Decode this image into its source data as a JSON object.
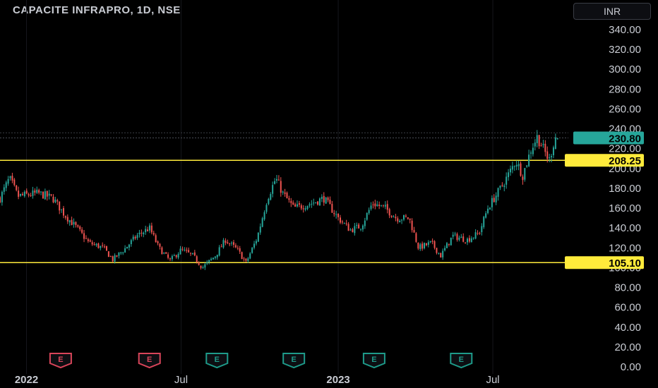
{
  "header": {
    "symbol_title": "CAPACITE INFRAPRO, 1D, NSE",
    "currency": "INR"
  },
  "colors": {
    "background": "#000000",
    "up": "#26a69a",
    "down": "#ef5350",
    "level_line": "#ffeb3b",
    "price_badge": "#26a69a",
    "earnings_down": "#d9455a",
    "earnings_up": "#1e9b8a"
  },
  "chart_data": {
    "type": "candlestick",
    "title": "CAPACITE INFRAPRO, 1D, NSE",
    "y_ticks": [
      "0.00",
      "20.00",
      "40.00",
      "60.00",
      "80.00",
      "100.00",
      "120.00",
      "140.00",
      "160.00",
      "180.00",
      "200.00",
      "220.00",
      "240.00",
      "260.00",
      "280.00",
      "300.00",
      "320.00",
      "340.00"
    ],
    "ylim": [
      0,
      355
    ],
    "x_ticks": [
      "2022",
      "Jul",
      "2023",
      "Jul"
    ],
    "x_range": [
      "2021-12-01",
      "2023-09-15"
    ],
    "last_price": "230.80",
    "horizontal_levels": [
      {
        "label": "208.25",
        "value": 208.25
      },
      {
        "label": "105.10",
        "value": 105.1
      }
    ],
    "earnings_markers": [
      {
        "date": "2022-02-10",
        "label": "E",
        "sentiment": "down"
      },
      {
        "date": "2022-05-25",
        "label": "E",
        "sentiment": "down"
      },
      {
        "date": "2022-08-12",
        "label": "E",
        "sentiment": "up"
      },
      {
        "date": "2022-11-10",
        "label": "E",
        "sentiment": "up"
      },
      {
        "date": "2023-02-12",
        "label": "E",
        "sentiment": "up"
      },
      {
        "date": "2023-05-25",
        "label": "E",
        "sentiment": "up"
      }
    ],
    "price_path": [
      [
        "2021-12-01",
        170
      ],
      [
        "2021-12-12",
        190
      ],
      [
        "2021-12-22",
        172
      ],
      [
        "2022-01-15",
        175
      ],
      [
        "2022-02-01",
        170
      ],
      [
        "2022-02-15",
        153
      ],
      [
        "2022-03-01",
        140
      ],
      [
        "2022-03-15",
        125
      ],
      [
        "2022-04-01",
        120
      ],
      [
        "2022-04-12",
        108
      ],
      [
        "2022-04-25",
        118
      ],
      [
        "2022-05-10",
        132
      ],
      [
        "2022-05-25",
        140
      ],
      [
        "2022-06-05",
        120
      ],
      [
        "2022-06-18",
        107
      ],
      [
        "2022-07-01",
        118
      ],
      [
        "2022-07-15",
        112
      ],
      [
        "2022-07-26",
        100
      ],
      [
        "2022-08-10",
        112
      ],
      [
        "2022-08-22",
        128
      ],
      [
        "2022-09-05",
        118
      ],
      [
        "2022-09-15",
        105
      ],
      [
        "2022-09-28",
        130
      ],
      [
        "2022-10-10",
        170
      ],
      [
        "2022-10-20",
        190
      ],
      [
        "2022-10-28",
        175
      ],
      [
        "2022-11-10",
        160
      ],
      [
        "2022-12-01",
        165
      ],
      [
        "2022-12-15",
        170
      ],
      [
        "2023-01-01",
        150
      ],
      [
        "2023-01-15",
        138
      ],
      [
        "2023-01-28",
        142
      ],
      [
        "2023-02-10",
        165
      ],
      [
        "2023-02-25",
        160
      ],
      [
        "2023-03-10",
        150
      ],
      [
        "2023-03-25",
        150
      ],
      [
        "2023-04-05",
        120
      ],
      [
        "2023-04-20",
        125
      ],
      [
        "2023-05-01",
        112
      ],
      [
        "2023-05-15",
        132
      ],
      [
        "2023-06-01",
        128
      ],
      [
        "2023-06-15",
        135
      ],
      [
        "2023-06-25",
        160
      ],
      [
        "2023-07-10",
        180
      ],
      [
        "2023-07-20",
        195
      ],
      [
        "2023-07-28",
        208
      ],
      [
        "2023-08-05",
        193
      ],
      [
        "2023-08-15",
        220
      ],
      [
        "2023-08-22",
        232
      ],
      [
        "2023-08-30",
        218
      ],
      [
        "2023-09-05",
        208
      ],
      [
        "2023-09-12",
        232
      ],
      [
        "2023-09-15",
        230.8
      ]
    ]
  }
}
